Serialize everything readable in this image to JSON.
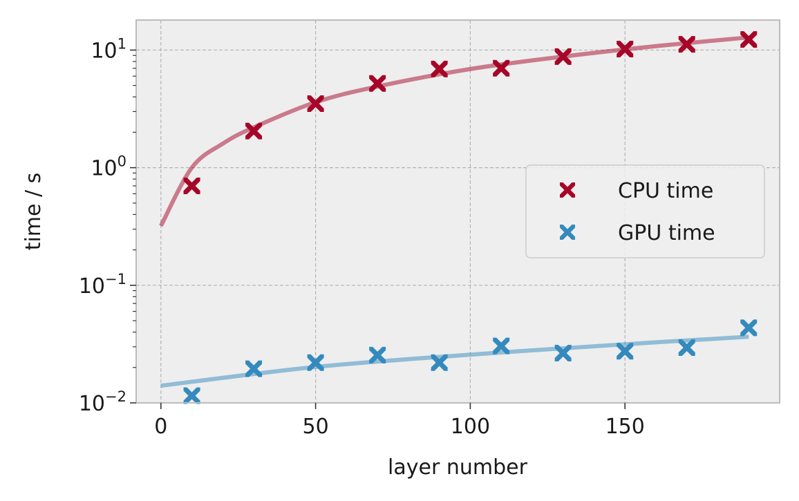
{
  "chart_data": {
    "type": "scatter",
    "title": "",
    "xlabel": "layer number",
    "ylabel": "time / s",
    "xlim": [
      -8,
      200
    ],
    "ylim": [
      0.01,
      18
    ],
    "yscale": "log",
    "grid": true,
    "legend_position": "center-right",
    "x_ticks": [
      0,
      50,
      100,
      150
    ],
    "x_tick_labels": [
      "0",
      "50",
      "100",
      "150"
    ],
    "y_ticks": [
      0.01,
      0.1,
      1,
      10
    ],
    "y_tick_labels": [
      {
        "base": "10",
        "exp": "−2"
      },
      {
        "base": "10",
        "exp": "−1"
      },
      {
        "base": "10",
        "exp": "0"
      },
      {
        "base": "10",
        "exp": "1"
      }
    ],
    "x": [
      10,
      30,
      50,
      70,
      90,
      110,
      130,
      150,
      170,
      190
    ],
    "series": [
      {
        "name": "CPU time",
        "color": "#a60628",
        "marker": "X",
        "values": [
          0.7,
          2.05,
          3.5,
          5.2,
          6.9,
          7.0,
          8.8,
          10.2,
          11.2,
          12.3
        ],
        "fit": {
          "x": [
            0,
            10,
            20,
            30,
            50,
            70,
            100,
            130,
            160,
            190
          ],
          "y": [
            0.32,
            1.0,
            1.6,
            2.2,
            3.6,
            4.9,
            6.9,
            8.8,
            10.8,
            12.8
          ]
        }
      },
      {
        "name": "GPU time",
        "color": "#348abd",
        "marker": "X",
        "values": [
          0.0115,
          0.0195,
          0.022,
          0.0255,
          0.022,
          0.0305,
          0.0265,
          0.0275,
          0.0295,
          0.0435
        ],
        "fit": {
          "x": [
            0,
            50,
            100,
            150,
            190
          ],
          "y": [
            0.014,
            0.0202,
            0.0257,
            0.0315,
            0.0365
          ]
        }
      }
    ]
  }
}
